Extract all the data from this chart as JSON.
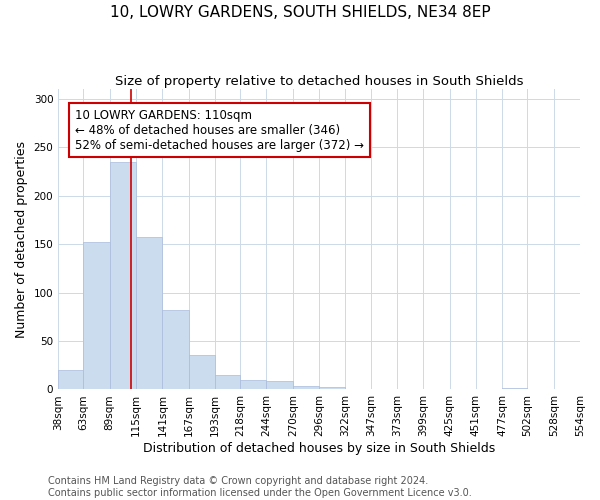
{
  "title": "10, LOWRY GARDENS, SOUTH SHIELDS, NE34 8EP",
  "subtitle": "Size of property relative to detached houses in South Shields",
  "xlabel": "Distribution of detached houses by size in South Shields",
  "ylabel": "Number of detached properties",
  "bin_labels": [
    "38sqm",
    "63sqm",
    "89sqm",
    "115sqm",
    "141sqm",
    "167sqm",
    "193sqm",
    "218sqm",
    "244sqm",
    "270sqm",
    "296sqm",
    "322sqm",
    "347sqm",
    "373sqm",
    "399sqm",
    "425sqm",
    "451sqm",
    "477sqm",
    "502sqm",
    "528sqm",
    "554sqm"
  ],
  "bin_edges": [
    38,
    63,
    89,
    115,
    141,
    167,
    193,
    218,
    244,
    270,
    296,
    322,
    347,
    373,
    399,
    425,
    451,
    477,
    502,
    528,
    554
  ],
  "bar_heights": [
    20,
    152,
    235,
    157,
    82,
    36,
    15,
    10,
    9,
    4,
    3,
    0,
    0,
    0,
    0,
    0,
    0,
    2,
    0,
    0
  ],
  "bar_color": "#ccdcef",
  "bar_edge_color": "#aabbdd",
  "property_line_x": 110,
  "property_line_color": "#cc0000",
  "annotation_line1": "10 LOWRY GARDENS: 110sqm",
  "annotation_line2": "← 48% of detached houses are smaller (346)",
  "annotation_line3": "52% of semi-detached houses are larger (372) →",
  "annotation_box_color": "#cc0000",
  "annotation_box_bg": "#ffffff",
  "ylim": [
    0,
    310
  ],
  "yticks": [
    0,
    50,
    100,
    150,
    200,
    250,
    300
  ],
  "footer_line1": "Contains HM Land Registry data © Crown copyright and database right 2024.",
  "footer_line2": "Contains public sector information licensed under the Open Government Licence v3.0.",
  "background_color": "#ffffff",
  "grid_color": "#ccd9e8",
  "title_fontsize": 11,
  "subtitle_fontsize": 9.5,
  "xlabel_fontsize": 9,
  "ylabel_fontsize": 9,
  "tick_fontsize": 7.5,
  "annotation_fontsize": 8.5,
  "footer_fontsize": 7
}
